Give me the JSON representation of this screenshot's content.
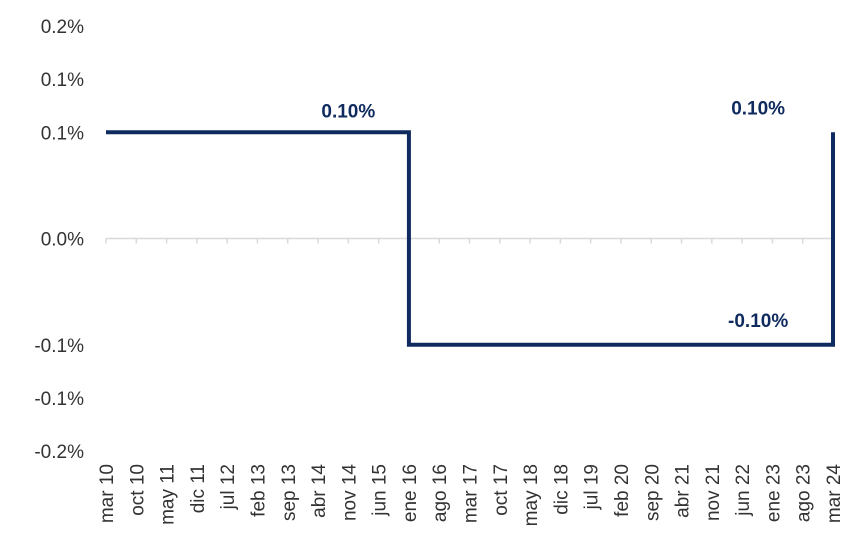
{
  "chart_data": {
    "type": "line",
    "step": true,
    "categories": [
      "mar 10",
      "oct 10",
      "may 11",
      "dic 11",
      "jul 12",
      "feb 13",
      "sep 13",
      "abr 14",
      "nov 14",
      "jun 15",
      "ene 16",
      "ago 16",
      "mar 17",
      "oct 17",
      "may 18",
      "dic 18",
      "jul 19",
      "feb 20",
      "sep 20",
      "abr 21",
      "nov 21",
      "jun 22",
      "ene 23",
      "ago 23",
      "mar 24"
    ],
    "ylim": [
      -0.2,
      0.2
    ],
    "ytick_values": [
      0.2,
      0.15,
      0.1,
      0.0,
      -0.1,
      -0.15,
      -0.2
    ],
    "ytick_labels": [
      "0.2%",
      "0.1%",
      "0.1%",
      "0.0%",
      "-0.1%",
      "-0.1%",
      "-0.2%"
    ],
    "series": [
      {
        "color": "#0e2a5e",
        "points": [
          {
            "x": "mar 10",
            "y": 0.1
          },
          {
            "x": "ene 16",
            "y": 0.1
          },
          {
            "x": "ene 16",
            "y": -0.1
          },
          {
            "x": "mar 24",
            "y": -0.1
          },
          {
            "x": "mar 24",
            "y": 0.1
          }
        ]
      }
    ],
    "annotations": [
      {
        "text": "0.10%",
        "x": "nov 14",
        "y": 0.1,
        "position": "above"
      },
      {
        "text": "0.10%",
        "x": "jun 22",
        "y": 0.1,
        "position": "above-right"
      },
      {
        "text": "-0.10%",
        "x": "jun 22",
        "y": -0.1,
        "position": "above-right"
      }
    ],
    "grid": false,
    "legend": "none"
  }
}
